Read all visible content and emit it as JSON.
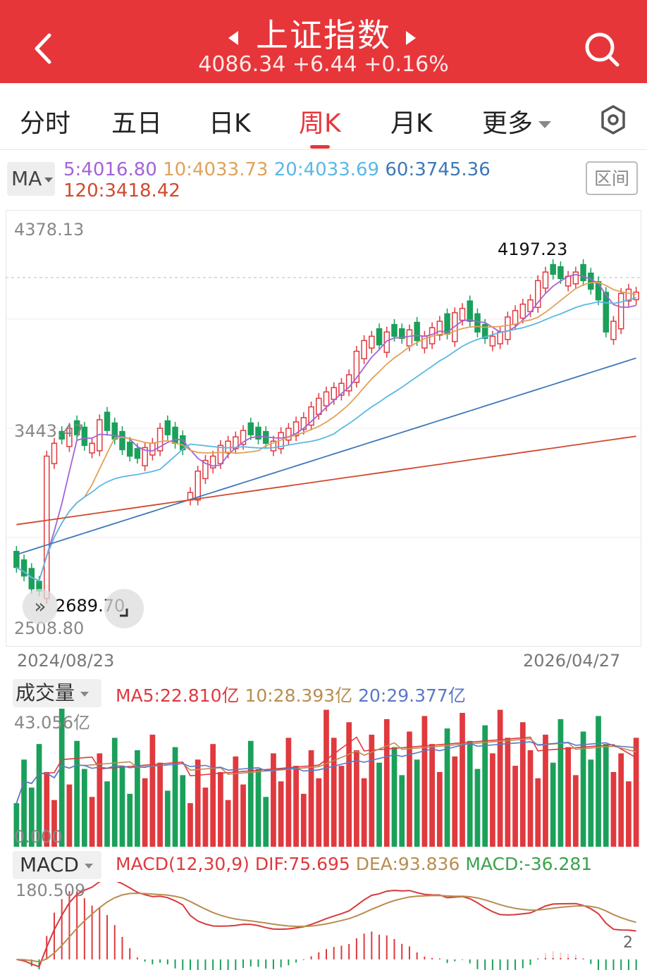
{
  "header": {
    "title": "上证指数",
    "quote": "4086.34 +6.44 +0.16%",
    "colors": {
      "bg": "#e6363a",
      "text": "#ffffff"
    }
  },
  "tabs": [
    {
      "label": "分时"
    },
    {
      "label": "五日"
    },
    {
      "label": "日K"
    },
    {
      "label": "周K",
      "active": true
    },
    {
      "label": "月K"
    },
    {
      "label": "更多"
    }
  ],
  "ma": {
    "button": "MA",
    "values": [
      {
        "label": "5:4016.80",
        "color": "#a463d6"
      },
      {
        "label": "10:4033.73",
        "color": "#e0a25a"
      },
      {
        "label": "20:4033.69",
        "color": "#5ab8e6"
      },
      {
        "label": "60:3745.36",
        "color": "#3d78b8"
      },
      {
        "label": "120:3418.42",
        "color": "#cf4a2e"
      }
    ],
    "range_button": "区间"
  },
  "price_axis": {
    "top": "4378.13",
    "mid": "3443.47",
    "bottom": "2508.80"
  },
  "high_label": "4197.23",
  "low_label": "2689.70",
  "dates": {
    "start": "2024/08/23",
    "end": "2026/04/27"
  },
  "volume": {
    "button": "成交量",
    "legend": [
      {
        "label": "MA5:22.810亿",
        "color": "#e0393e"
      },
      {
        "label": "10:28.393亿",
        "color": "#b88d50"
      },
      {
        "label": "20:29.377亿",
        "color": "#5a78c8"
      }
    ],
    "axis_top": "43.056亿",
    "axis_bottom": "0.000"
  },
  "macd": {
    "button": "MACD",
    "legend": [
      {
        "label": "MACD(12,30,9)",
        "color": "#e0393e"
      },
      {
        "label": "DIF:75.695",
        "color": "#e0393e"
      },
      {
        "label": "DEA:93.836",
        "color": "#b88d50"
      },
      {
        "label": "MACD:-36.281",
        "color": "#3aa34a"
      }
    ],
    "axis_top": "180.509"
  },
  "watermark": "2",
  "chart_data": {
    "type": "candlestick",
    "ylim": [
      2508.8,
      4378.13
    ],
    "x_range": [
      "2024/08/23",
      "2026/04/27"
    ],
    "close": [
      2800,
      2760,
      2700,
      2690,
      3320,
      3380,
      3400,
      3450,
      3420,
      3370,
      3380,
      3490,
      3440,
      3400,
      3350,
      3320,
      3310,
      3360,
      3380,
      3450,
      3420,
      3380,
      3350,
      3150,
      3250,
      3300,
      3320,
      3370,
      3390,
      3410,
      3440,
      3420,
      3400,
      3380,
      3390,
      3430,
      3450,
      3480,
      3500,
      3550,
      3590,
      3620,
      3640,
      3660,
      3700,
      3810,
      3860,
      3880,
      3840,
      3900,
      3880,
      3870,
      3910,
      3860,
      3880,
      3920,
      3950,
      3890,
      3990,
      4010,
      3950,
      3900,
      3870,
      3880,
      3900,
      3970,
      4000,
      4030,
      4050,
      4140,
      4180,
      4170,
      4150,
      4160,
      4180,
      4140,
      4100,
      4050,
      3900,
      3950,
      4080,
      4100,
      4086
    ],
    "up": [
      false,
      false,
      false,
      false,
      true,
      true,
      false,
      true,
      false,
      false,
      true,
      true,
      false,
      false,
      false,
      false,
      false,
      true,
      true,
      true,
      false,
      false,
      false,
      true,
      true,
      true,
      true,
      true,
      true,
      true,
      true,
      false,
      false,
      false,
      true,
      true,
      true,
      true,
      true,
      true,
      true,
      true,
      true,
      true,
      true,
      true,
      true,
      true,
      false,
      true,
      false,
      false,
      true,
      false,
      true,
      true,
      true,
      false,
      true,
      true,
      false,
      false,
      false,
      true,
      true,
      true,
      true,
      true,
      true,
      true,
      true,
      false,
      false,
      true,
      true,
      false,
      false,
      false,
      false,
      true,
      true,
      true,
      true
    ],
    "ma_series": [
      "MA5",
      "MA10",
      "MA20",
      "MA60",
      "MA120"
    ]
  }
}
